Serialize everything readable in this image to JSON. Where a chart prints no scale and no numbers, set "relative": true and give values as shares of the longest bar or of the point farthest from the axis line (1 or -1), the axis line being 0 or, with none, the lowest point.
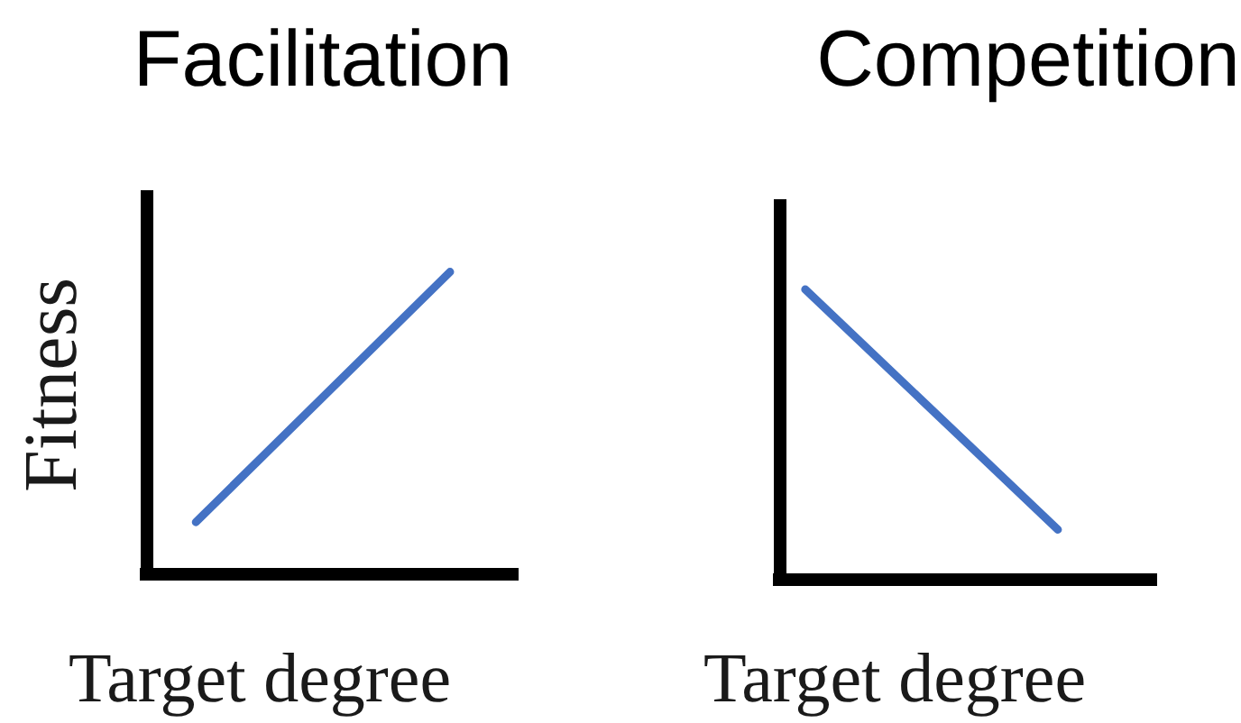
{
  "chart_data": [
    {
      "type": "line",
      "title": "Facilitation",
      "xlabel": "Target degree",
      "ylabel": "Fitness",
      "categories": [
        null,
        null
      ],
      "relative": true,
      "marker": "none",
      "series": [
        {
          "color": "#4472c4",
          "values": [
            0.17,
            1
          ]
        }
      ]
    },
    {
      "type": "line",
      "title": "Competition",
      "xlabel": "Target degree",
      "categories": [
        null,
        null
      ],
      "relative": true,
      "marker": "none",
      "series": [
        {
          "color": "#4472c4",
          "values": [
            1,
            0.17
          ]
        }
      ]
    }
  ]
}
